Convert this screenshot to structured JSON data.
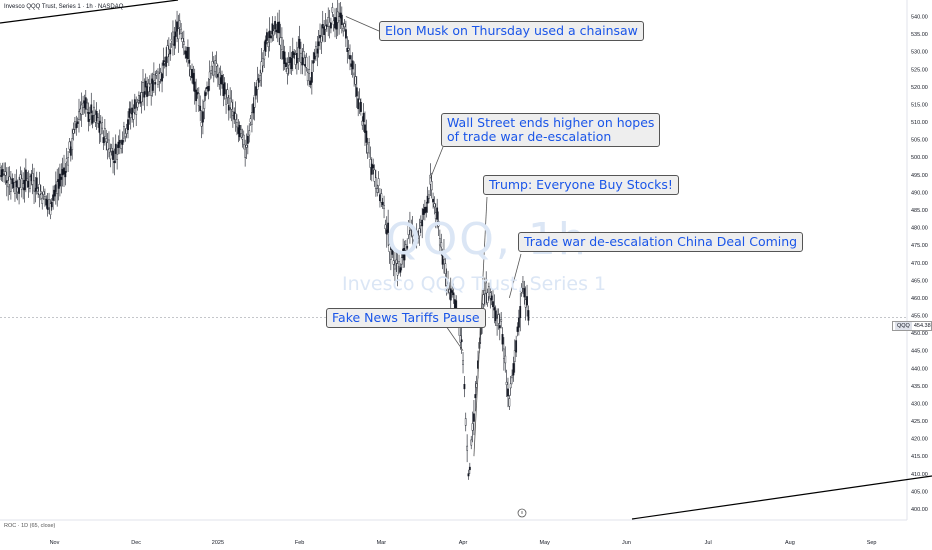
{
  "header": {
    "title": "Invesco QQQ Trust, Series 1 · 1h · NASDAQ"
  },
  "watermark": {
    "symbol": "QQQ, 1h",
    "name": "Invesco QQQ Trust, Series 1"
  },
  "indicator": {
    "label": "ROC · 1D (65, close)"
  },
  "price_tag": {
    "symbol": "QQQ",
    "value": "454.38"
  },
  "colors": {
    "annotation_text": "#1a55e8",
    "candles": "#131722",
    "trendline": "#000000"
  },
  "chart_data": {
    "type": "line",
    "title": "",
    "xlabel": "",
    "ylabel": "",
    "ylim": [
      398,
      543
    ],
    "yticks": [
      400,
      405,
      410,
      415,
      420,
      425,
      430,
      435,
      440,
      445,
      450,
      455,
      460,
      465,
      470,
      475,
      480,
      485,
      490,
      495,
      500,
      505,
      510,
      515,
      520,
      525,
      530,
      535,
      540
    ],
    "ytick_labels": [
      "400.00",
      "405.00",
      "410.00",
      "415.00",
      "420.00",
      "425.00",
      "430.00",
      "435.00",
      "440.00",
      "445.00",
      "450.00",
      "455.00",
      "460.00",
      "465.00",
      "470.00",
      "475.00",
      "480.00",
      "485.00",
      "490.00",
      "495.00",
      "500.00",
      "505.00",
      "510.00",
      "515.00",
      "520.00",
      "525.00",
      "530.00",
      "535.00",
      "540.00"
    ],
    "xticks": [
      {
        "label": "Nov",
        "i": 20
      },
      {
        "label": "Dec",
        "i": 50
      },
      {
        "label": "2025",
        "i": 80
      },
      {
        "label": "Feb",
        "i": 110
      },
      {
        "label": "Mar",
        "i": 140
      },
      {
        "label": "Apr",
        "i": 170
      },
      {
        "label": "May",
        "i": 200
      },
      {
        "label": "Jun",
        "i": 230
      },
      {
        "label": "Jul",
        "i": 260
      },
      {
        "label": "Aug",
        "i": 290
      },
      {
        "label": "Sep",
        "i": 320
      }
    ],
    "grid": false,
    "x_range": [
      0,
      333
    ],
    "series": [
      {
        "points": [
          [
            0,
            496
          ],
          [
            6,
            492
          ],
          [
            12,
            494
          ],
          [
            18,
            486
          ],
          [
            24,
            497
          ],
          [
            30,
            515
          ],
          [
            36,
            510
          ],
          [
            42,
            500
          ],
          [
            48,
            512
          ],
          [
            54,
            520
          ],
          [
            60,
            525
          ],
          [
            66,
            538
          ],
          [
            70,
            525
          ],
          [
            74,
            511
          ],
          [
            78,
            527
          ],
          [
            82,
            520
          ],
          [
            86,
            511
          ],
          [
            90,
            502
          ],
          [
            94,
            518
          ],
          [
            98,
            533
          ],
          [
            102,
            537
          ],
          [
            106,
            525
          ],
          [
            110,
            531
          ],
          [
            114,
            522
          ],
          [
            118,
            535
          ],
          [
            122,
            540
          ],
          [
            126,
            538
          ],
          [
            128,
            530
          ],
          [
            132,
            515
          ],
          [
            136,
            500
          ],
          [
            140,
            488
          ],
          [
            144,
            472
          ],
          [
            147,
            468
          ],
          [
            150,
            478
          ],
          [
            154,
            478
          ],
          [
            158,
            492
          ],
          [
            161,
            480
          ],
          [
            164,
            465
          ],
          [
            167,
            460
          ],
          [
            170,
            443
          ],
          [
            172,
            408
          ],
          [
            174,
            426
          ],
          [
            176,
            445
          ],
          [
            178,
            463
          ],
          [
            181,
            458
          ],
          [
            184,
            452
          ],
          [
            187,
            430
          ],
          [
            189,
            442
          ],
          [
            192,
            465
          ],
          [
            194,
            455
          ]
        ]
      }
    ],
    "last_price": 454.38,
    "annotations": [
      {
        "text": "Elon Musk on Thursday used a chainsaw",
        "i": 127,
        "y": 540
      },
      {
        "text": "Wall Street ends higher on hopes of trade war de-escalation",
        "lines": [
          "Wall Street ends higher on hopes",
          "of trade war de-escalation"
        ],
        "i": 158,
        "y": 494
      },
      {
        "text": "Trump: Everyone Buy Stocks!",
        "i": 174,
        "y": 415
      },
      {
        "text": "Trade war de-escalation China Deal Coming",
        "i": 187,
        "y": 460
      },
      {
        "text": "Fake News Tariffs Pause",
        "i": 170,
        "y": 445
      }
    ]
  }
}
